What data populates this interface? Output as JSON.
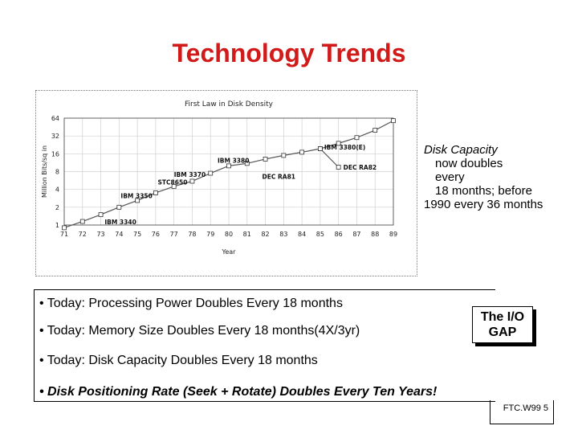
{
  "slide": {
    "title": "Technology Trends",
    "callout_lines": [
      "Disk Capacity",
      "now doubles",
      "every",
      "18 months; before",
      "1990 every 36 months"
    ],
    "bullets": [
      "• Today: Processing Power Doubles Every 18 months",
      "• Today: Memory Size Doubles Every 18 months(4X/3yr)",
      "• Today: Disk Capacity Doubles Every 18 months",
      "• Disk Positioning Rate (Seek + Rotate) Doubles Every Ten Years!"
    ],
    "gap_box": [
      "The I/O",
      "GAP"
    ],
    "footer": "FTC.W99 5"
  },
  "chart_data": {
    "type": "line",
    "title": "First Law in Disk Density",
    "xlabel": "Year",
    "ylabel": "Million Bits/sq in",
    "y_scale": "log2",
    "ylim": [
      1,
      64
    ],
    "xlim": [
      71,
      89
    ],
    "x_ticks": [
      "71",
      "72",
      "73",
      "74",
      "75",
      "76",
      "77",
      "78",
      "79",
      "80",
      "81",
      "82",
      "83",
      "84",
      "85",
      "86",
      "87",
      "88",
      "89"
    ],
    "y_ticks": [
      "1",
      "2",
      "4",
      "8",
      "16",
      "32",
      "64"
    ],
    "grid": true,
    "series": [
      {
        "x": [
          71,
          72,
          73,
          74,
          75,
          76,
          77,
          78,
          79,
          80,
          81,
          82,
          83,
          84,
          85,
          86,
          87,
          88,
          89
        ],
        "y": [
          0.9,
          1.15,
          1.5,
          2.0,
          2.6,
          3.5,
          4.5,
          5.5,
          7.5,
          10,
          11,
          13,
          15,
          17,
          19.5,
          24,
          30,
          40,
          58
        ]
      },
      {
        "x": [
          85,
          86
        ],
        "y": [
          19.5,
          9.5
        ]
      }
    ],
    "annotations": [
      {
        "text": "IBM 3380(E)",
        "x": 85,
        "y": 19.5
      },
      {
        "text": "IBM 3380",
        "x": 80,
        "y": 10
      },
      {
        "text": "IBM 3370",
        "x": 79,
        "y": 7
      },
      {
        "text": "STC8650",
        "x": 78,
        "y": 5.3
      },
      {
        "text": "DEC RA81",
        "x": 82,
        "y": 6.6
      },
      {
        "text": "DEC RA82",
        "x": 86,
        "y": 9.5
      },
      {
        "text": "IBM 3350",
        "x": 76,
        "y": 2.6
      },
      {
        "text": "IBM 3340",
        "x": 74,
        "y": 1.4
      }
    ],
    "line_color": "#555555",
    "marker_color": "#ffffff"
  }
}
